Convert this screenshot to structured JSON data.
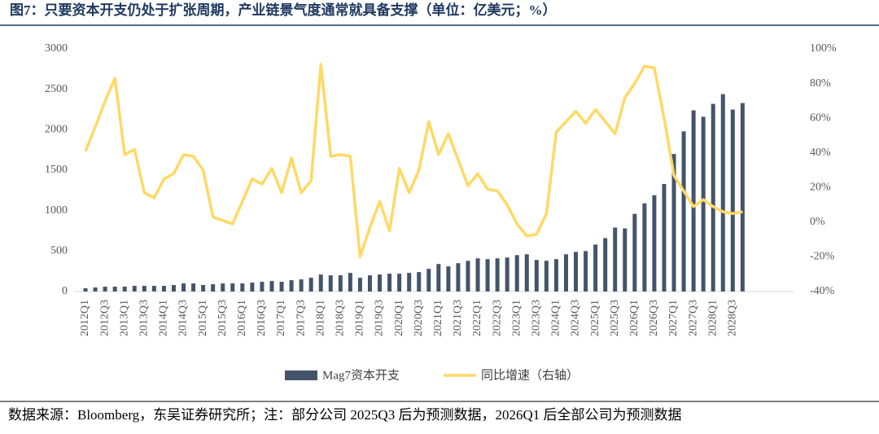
{
  "chart_data": {
    "type": "bar_line",
    "title": "图7：只要资本开支仍处于扩张周期，产业链景气度通常就具备支撑（单位：亿美元；%）",
    "source": "数据来源：Bloomberg，东吴证券研究所；注：部分公司 2025Q3 后为预测数据，2026Q1 后全部公司为预测数据",
    "categories": [
      "2012Q1",
      null,
      "2012Q3",
      null,
      "2013Q1",
      null,
      "2013Q3",
      null,
      "2014Q1",
      null,
      "2014Q3",
      null,
      "2015Q1",
      null,
      "2015Q3",
      null,
      "2016Q1",
      null,
      "2016Q3",
      null,
      "2017Q1",
      null,
      "2017Q3",
      null,
      "2018Q1",
      null,
      "2018Q3",
      null,
      "2019Q1",
      null,
      "2019Q3",
      null,
      "2020Q1",
      null,
      "2020Q3",
      null,
      "2021Q1",
      null,
      "2021Q3",
      null,
      "2022Q1",
      null,
      "2022Q3",
      null,
      "2023Q1",
      null,
      "2023Q3",
      null,
      "2024Q1",
      null,
      "2024Q3",
      null,
      "2025Q1",
      null,
      "2025Q3",
      null,
      "2026Q1",
      null,
      "2026Q3",
      null,
      "2027Q1",
      null,
      "2027Q3",
      null,
      "2028Q1",
      null,
      "2028Q3",
      null
    ],
    "series": [
      {
        "name": "Mag7资本开支",
        "color": "#44546a",
        "axis": "y",
        "values": [
          40,
          50,
          60,
          60,
          60,
          70,
          70,
          70,
          70,
          80,
          100,
          100,
          80,
          90,
          100,
          100,
          100,
          110,
          120,
          130,
          120,
          140,
          150,
          170,
          210,
          200,
          200,
          230,
          170,
          200,
          210,
          220,
          220,
          230,
          240,
          280,
          340,
          310,
          350,
          380,
          410,
          400,
          410,
          420,
          450,
          460,
          390,
          380,
          400,
          460,
          490,
          500,
          580,
          660,
          790,
          780,
          960,
          1090,
          1190,
          1330,
          1700,
          1980,
          2240,
          2160,
          2320,
          2440,
          2250,
          2330
        ]
      },
      {
        "name": "同比增速（右轴）",
        "color": "#ffd966",
        "axis": "y2",
        "values": [
          41,
          55,
          70,
          83,
          39,
          42,
          17,
          14,
          25,
          28,
          39,
          38,
          30,
          3,
          1,
          -1,
          12,
          25,
          22,
          31,
          17,
          37,
          17,
          24,
          91,
          38,
          39,
          38,
          -20,
          -3,
          12,
          -5,
          31,
          17,
          30,
          58,
          39,
          51,
          36,
          21,
          28,
          19,
          18,
          10,
          -1,
          -8,
          -7,
          5,
          52,
          58,
          64,
          57,
          65,
          58,
          51,
          72,
          80,
          90,
          89,
          60,
          27,
          18,
          9,
          13,
          9,
          6,
          5,
          6
        ]
      }
    ],
    "ylim": [
      0,
      3000
    ],
    "yticks": [
      0,
      500,
      1000,
      1500,
      2000,
      2500,
      3000
    ],
    "y2lim": [
      -40,
      100
    ],
    "y2ticks": [
      {
        "value": -40,
        "label": "-40%"
      },
      {
        "value": -20,
        "label": "-20%"
      },
      {
        "value": 0,
        "label": "0%"
      },
      {
        "value": 20,
        "label": "20%"
      },
      {
        "value": 40,
        "label": "40%"
      },
      {
        "value": 60,
        "label": "60%"
      },
      {
        "value": 80,
        "label": "80%"
      },
      {
        "value": 100,
        "label": "100%"
      }
    ]
  }
}
